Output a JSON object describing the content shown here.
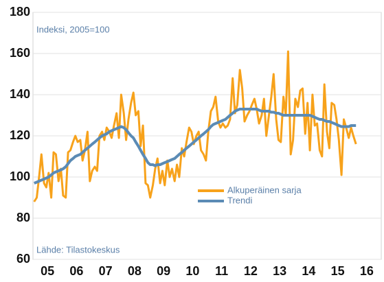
{
  "chart_data": {
    "type": "line",
    "annotations": [
      "Indeksi, 2005=100",
      "Lähde: Tilastokeskus"
    ],
    "x": [
      2005.04,
      2005.13,
      2005.21,
      2005.29,
      2005.38,
      2005.46,
      2005.54,
      2005.63,
      2005.71,
      2005.79,
      2005.88,
      2005.96,
      2006.04,
      2006.13,
      2006.21,
      2006.29,
      2006.38,
      2006.46,
      2006.54,
      2006.63,
      2006.71,
      2006.79,
      2006.88,
      2006.96,
      2007.04,
      2007.13,
      2007.21,
      2007.29,
      2007.38,
      2007.46,
      2007.54,
      2007.63,
      2007.71,
      2007.79,
      2007.88,
      2007.96,
      2008.04,
      2008.13,
      2008.21,
      2008.29,
      2008.38,
      2008.46,
      2008.54,
      2008.63,
      2008.71,
      2008.79,
      2008.88,
      2008.96,
      2009.04,
      2009.13,
      2009.21,
      2009.29,
      2009.38,
      2009.46,
      2009.54,
      2009.63,
      2009.71,
      2009.79,
      2009.88,
      2009.96,
      2010.04,
      2010.13,
      2010.21,
      2010.29,
      2010.38,
      2010.46,
      2010.54,
      2010.63,
      2010.71,
      2010.79,
      2010.88,
      2010.96,
      2011.04,
      2011.13,
      2011.21,
      2011.29,
      2011.38,
      2011.46,
      2011.54,
      2011.63,
      2011.71,
      2011.79,
      2011.88,
      2011.96,
      2012.04,
      2012.13,
      2012.21,
      2012.29,
      2012.38,
      2012.46,
      2012.54,
      2012.63,
      2012.71,
      2012.79,
      2012.88,
      2012.96,
      2013.04,
      2013.13,
      2013.21,
      2013.29,
      2013.38,
      2013.46,
      2013.54,
      2013.63,
      2013.71,
      2013.79,
      2013.88,
      2013.96,
      2014.04,
      2014.13,
      2014.21,
      2014.29,
      2014.38,
      2014.46,
      2014.54,
      2014.63,
      2014.71,
      2014.79,
      2014.88,
      2014.96,
      2015.04,
      2015.13,
      2015.21,
      2015.29,
      2015.38,
      2015.46,
      2015.54,
      2015.63,
      2015.71,
      2015.79,
      2015.88,
      2015.96,
      2016.04,
      2016.13
    ],
    "series": [
      {
        "name": "Alkuperäinen sarja",
        "color": "#f7a21b",
        "values": [
          88,
          90,
          100,
          111,
          97,
          95,
          102,
          90,
          112,
          111,
          98,
          104,
          91,
          90,
          112,
          113,
          117,
          120,
          117,
          118,
          108,
          113,
          122,
          98,
          103,
          105,
          103,
          120,
          122,
          118,
          124,
          122,
          119,
          125,
          131,
          119,
          140,
          131,
          118,
          128,
          136,
          141,
          130,
          132,
          115,
          125,
          97,
          96,
          90,
          96,
          104,
          109,
          97,
          103,
          96,
          108,
          100,
          104,
          98,
          106,
          100,
          114,
          110,
          117,
          124,
          122,
          116,
          120,
          122,
          113,
          111,
          108,
          122,
          132,
          134,
          139,
          127,
          124,
          126,
          124,
          125,
          128,
          148,
          131,
          135,
          152,
          143,
          127,
          130,
          132,
          135,
          138,
          133,
          126,
          130,
          138,
          120,
          130,
          139,
          150,
          128,
          118,
          117,
          139,
          130,
          161,
          111,
          118,
          138,
          134,
          142,
          143,
          121,
          136,
          113,
          140,
          125,
          126,
          113,
          110,
          145,
          122,
          114,
          136,
          135,
          128,
          118,
          101,
          128,
          124,
          119,
          124,
          120,
          116
        ]
      },
      {
        "name": "Trendi",
        "color": "#5b8bb5",
        "values": [
          97,
          97.5,
          98,
          98.5,
          99,
          99.5,
          100,
          101,
          102,
          102.5,
          103,
          103.5,
          104,
          105,
          106.5,
          108,
          109,
          110,
          110.5,
          111,
          112,
          113,
          114,
          115,
          116,
          117,
          118,
          119,
          120,
          120.5,
          121,
          122,
          122.5,
          123,
          123.5,
          124,
          124.5,
          124,
          123,
          121.5,
          120,
          119,
          117,
          115,
          113,
          111,
          109,
          107,
          106,
          106,
          105.5,
          106,
          106,
          106.5,
          107,
          107.5,
          108,
          108.5,
          109,
          110,
          111,
          112,
          113,
          114,
          115,
          116,
          117,
          118,
          119,
          120,
          121,
          122,
          123,
          124.5,
          125.5,
          126,
          126.5,
          127,
          127.5,
          128,
          129,
          130,
          131,
          132,
          132.5,
          133,
          133,
          133,
          133,
          133,
          133,
          133,
          133,
          132.5,
          132,
          132,
          132,
          132,
          131.5,
          131.5,
          131,
          131,
          130.5,
          130,
          130,
          130,
          130,
          130,
          130,
          130,
          130,
          130,
          130,
          130,
          130,
          129.5,
          129,
          128.5,
          128,
          128,
          127.5,
          127,
          127,
          126.5,
          126,
          125.5,
          125,
          124.5,
          124.5,
          124.5,
          124.5,
          125,
          125,
          125
        ]
      }
    ],
    "xlim": [
      2005,
      2017
    ],
    "xticks": [
      {
        "value": 2005.5,
        "label": "05"
      },
      {
        "value": 2006.5,
        "label": "06"
      },
      {
        "value": 2007.5,
        "label": "07"
      },
      {
        "value": 2008.5,
        "label": "08"
      },
      {
        "value": 2009.5,
        "label": "09"
      },
      {
        "value": 2010.5,
        "label": "10"
      },
      {
        "value": 2011.5,
        "label": "11"
      },
      {
        "value": 2012.5,
        "label": "12"
      },
      {
        "value": 2013.5,
        "label": "13"
      },
      {
        "value": 2014.5,
        "label": "14"
      },
      {
        "value": 2015.5,
        "label": "15"
      },
      {
        "value": 2016.5,
        "label": "16"
      }
    ],
    "ylim": [
      60,
      180
    ],
    "yticks": [
      60,
      80,
      100,
      120,
      140,
      160,
      180
    ],
    "grid": true
  }
}
